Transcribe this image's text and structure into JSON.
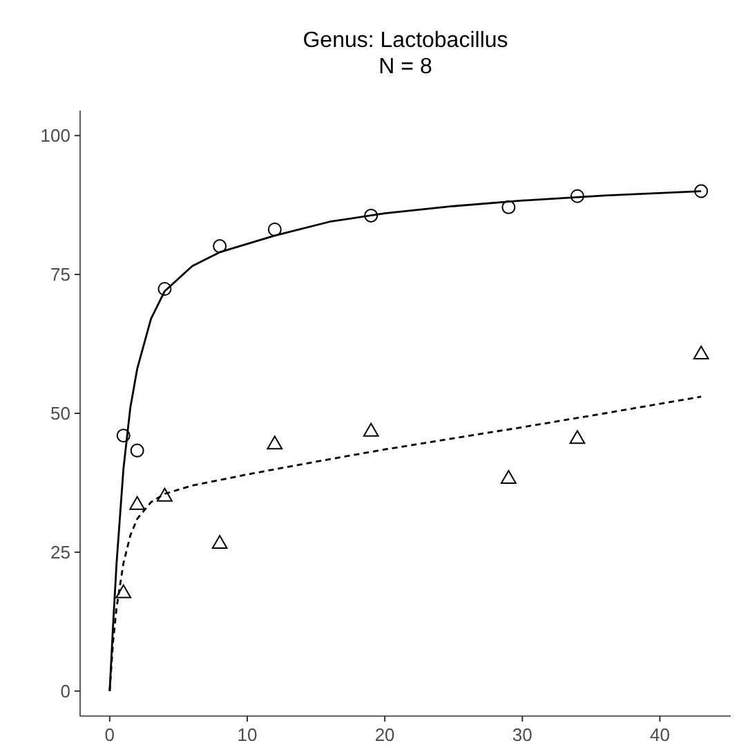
{
  "chart_data": {
    "type": "scatter",
    "title": "Genus: Lactobacillus",
    "subtitle": "N = 8",
    "xlim": [
      -2.15,
      45.15
    ],
    "ylim": [
      -4.5,
      104.5
    ],
    "xticks": [
      0,
      10,
      20,
      30,
      40
    ],
    "yticks": [
      0,
      25,
      50,
      75,
      100
    ],
    "grid": false,
    "series": [
      {
        "color": "#000000",
        "marker": "circle",
        "x": [
          1,
          2,
          4,
          8,
          12,
          19,
          29,
          34,
          43
        ],
        "values": [
          46,
          43.3,
          72.4,
          80.1,
          83.1,
          85.6,
          87.1,
          89.1,
          90
        ]
      },
      {
        "color": "#000000",
        "marker": "triangle",
        "x": [
          1,
          2,
          4,
          8,
          12,
          19,
          29,
          34,
          43
        ],
        "values": [
          17.7,
          33.6,
          35.1,
          26.6,
          44.5,
          46.8,
          38.3,
          45.5,
          60.7
        ]
      },
      {
        "type": "line",
        "color": "#000000",
        "marker": "none",
        "line_style": "solid",
        "x": [
          0,
          0.25,
          0.5,
          1,
          1.5,
          2,
          3,
          4,
          6,
          8,
          12,
          16,
          20,
          25,
          30,
          36,
          43
        ],
        "values": [
          0,
          12,
          23,
          40,
          51,
          58,
          67,
          72,
          76.5,
          79,
          82,
          84.5,
          86,
          87.3,
          88.3,
          89.2,
          90
        ]
      },
      {
        "type": "line",
        "color": "#000000",
        "marker": "none",
        "line_style": "dashed",
        "x": [
          0,
          0.25,
          0.5,
          1,
          1.5,
          2,
          3,
          4,
          6,
          10,
          15,
          20,
          25,
          30,
          36,
          43
        ],
        "values": [
          0,
          9,
          15,
          23,
          28,
          31,
          34,
          35.5,
          37,
          39,
          41.3,
          43.5,
          45.5,
          47.5,
          50,
          53
        ]
      }
    ]
  }
}
